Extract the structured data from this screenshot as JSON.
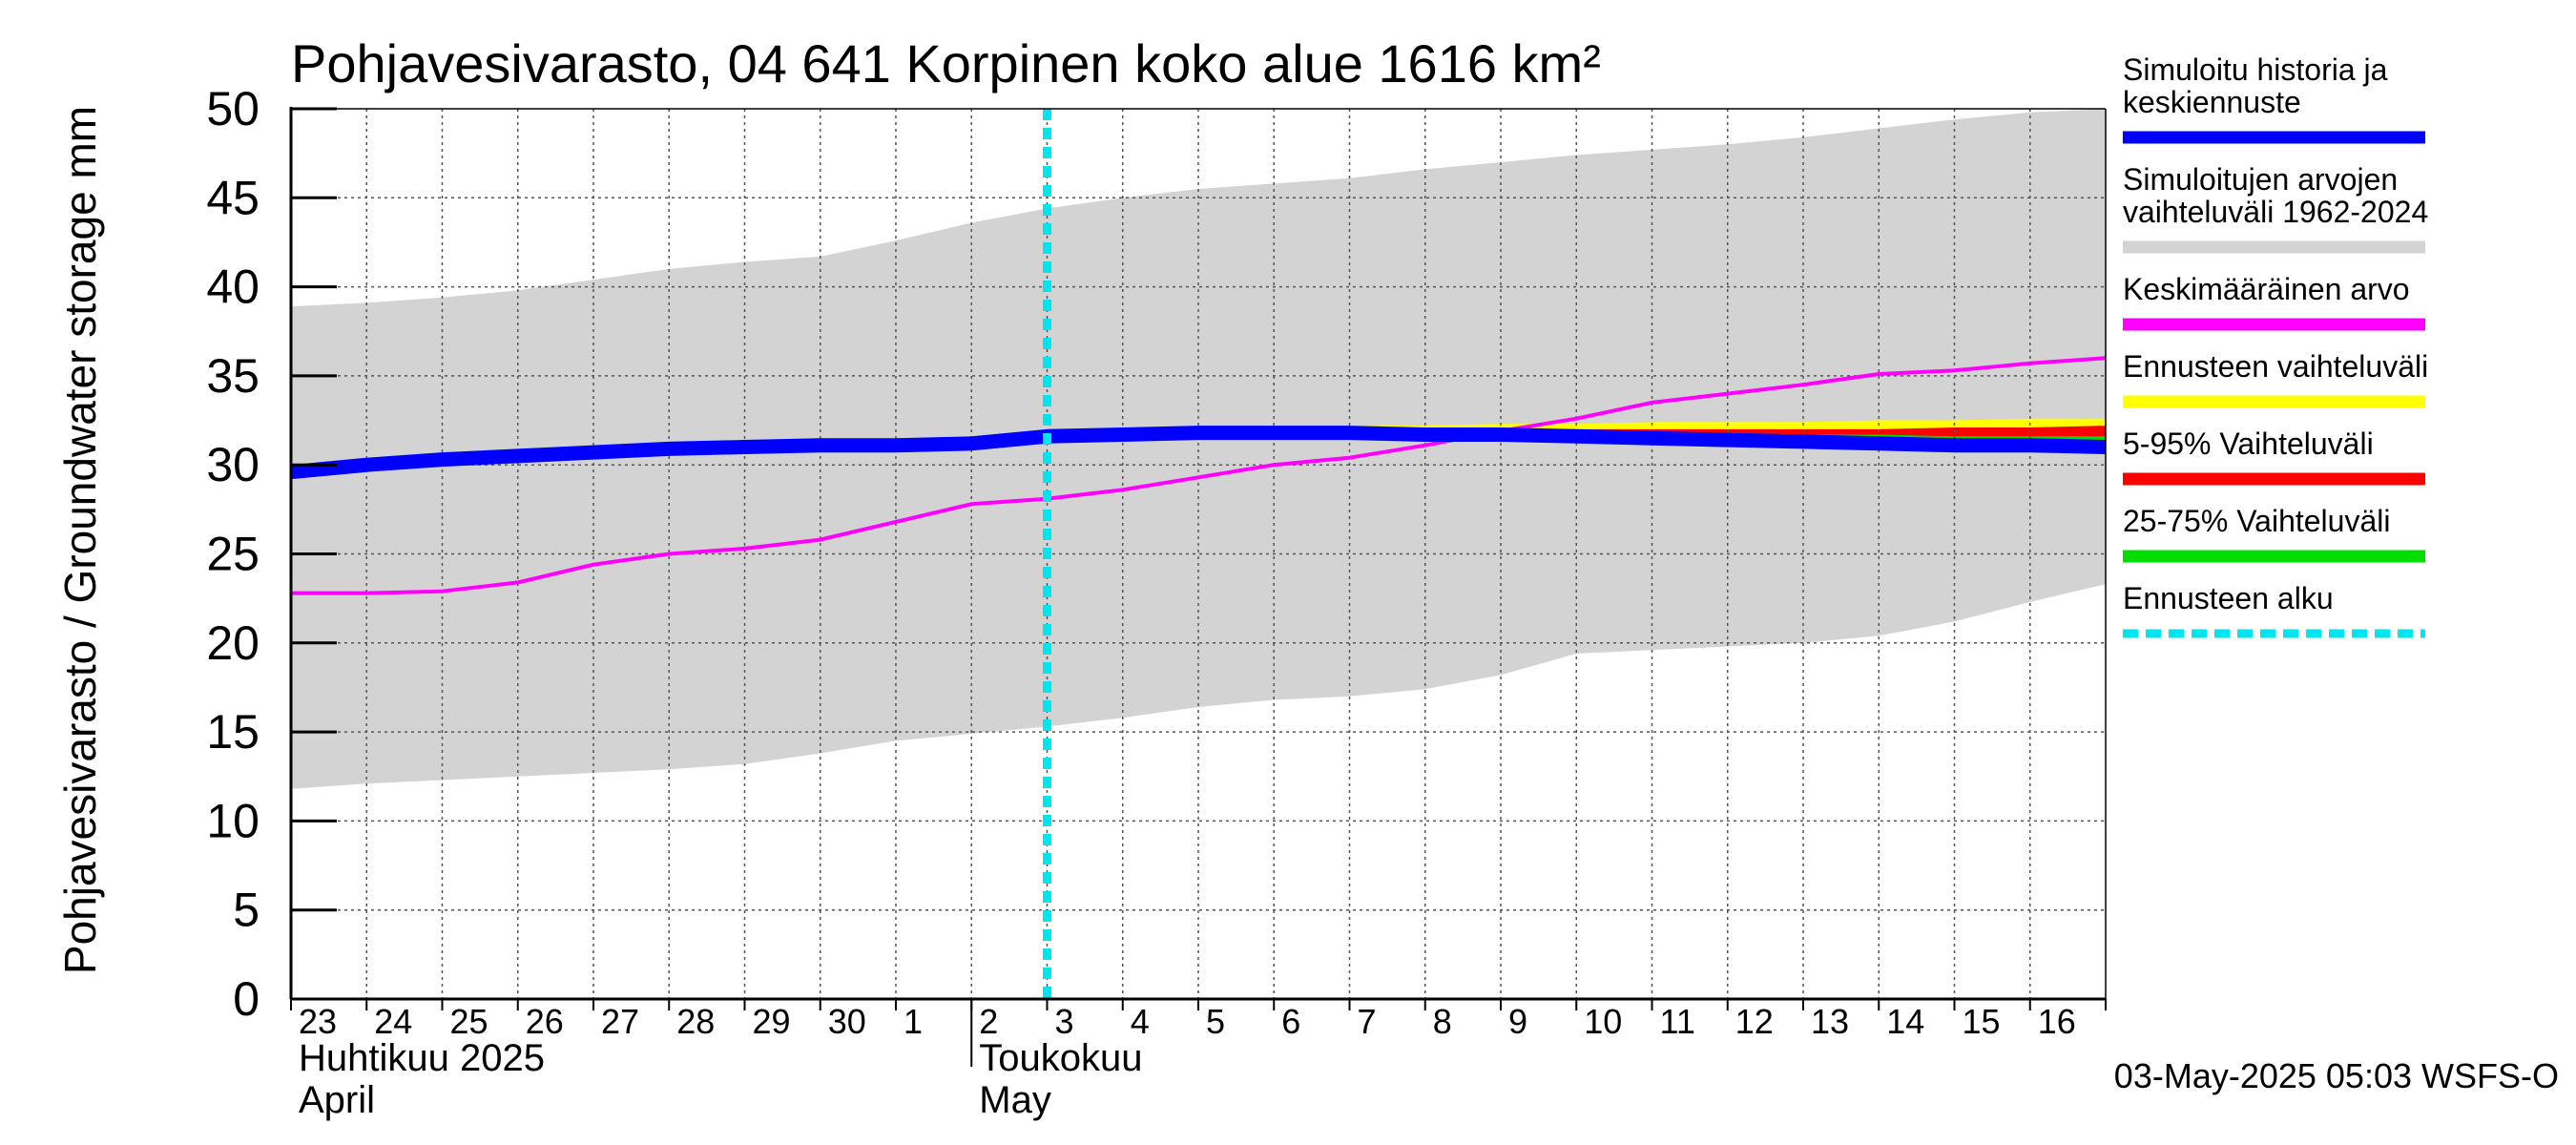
{
  "chart_data": {
    "type": "area",
    "title": "Pohjavesivarasto, 04 641 Korpinen koko alue 1616 km²",
    "ylabel": "Pohjavesivarasto / Groundwater storage   mm",
    "ylim": [
      0,
      50
    ],
    "yticks": [
      0,
      5,
      10,
      15,
      20,
      25,
      30,
      35,
      40,
      45,
      50
    ],
    "grid": true,
    "x_start": "2025-04-23",
    "x_end": "2025-05-16",
    "x_tick_labels": [
      "23",
      "24",
      "25",
      "26",
      "27",
      "28",
      "29",
      "30",
      "1",
      "2",
      "3",
      "4",
      "5",
      "6",
      "7",
      "8",
      "9",
      "10",
      "11",
      "12",
      "13",
      "14",
      "15",
      "16"
    ],
    "month_labels": [
      {
        "fi": "Huhtikuu  2025",
        "en": "April",
        "start": "2025-04-23"
      },
      {
        "fi": "Toukokuu",
        "en": "May",
        "start": "2025-05-02"
      }
    ],
    "forecast_start": "2025-05-03",
    "series": [
      {
        "name": "Simuloitujen arvojen vaihteluväli 1962-2024",
        "kind": "band",
        "color": "#d3d3d3",
        "x": [
          "2025-04-23",
          "2025-04-24",
          "2025-04-25",
          "2025-04-26",
          "2025-04-27",
          "2025-04-28",
          "2025-04-29",
          "2025-04-30",
          "2025-05-01",
          "2025-05-02",
          "2025-05-03",
          "2025-05-04",
          "2025-05-05",
          "2025-05-06",
          "2025-05-07",
          "2025-05-08",
          "2025-05-09",
          "2025-05-10",
          "2025-05-11",
          "2025-05-12",
          "2025-05-13",
          "2025-05-14",
          "2025-05-15",
          "2025-05-16",
          "2025-05-17"
        ],
        "lower": [
          11.8,
          12.1,
          12.3,
          12.5,
          12.7,
          12.9,
          13.2,
          13.8,
          14.5,
          14.9,
          15.3,
          15.8,
          16.4,
          16.8,
          17.0,
          17.4,
          18.2,
          19.4,
          19.6,
          19.8,
          20.0,
          20.4,
          21.2,
          22.3,
          23.3
        ],
        "upper": [
          38.9,
          39.1,
          39.4,
          39.8,
          40.4,
          41.0,
          41.4,
          41.7,
          42.6,
          43.6,
          44.4,
          45.0,
          45.5,
          45.8,
          46.1,
          46.6,
          47.0,
          47.4,
          47.7,
          48.0,
          48.4,
          48.9,
          49.4,
          49.8,
          50.0
        ]
      },
      {
        "name": "Ennusteen vaihteluväli",
        "kind": "band",
        "color": "#ffff00",
        "x": [
          "2025-05-03",
          "2025-05-04",
          "2025-05-05",
          "2025-05-06",
          "2025-05-07",
          "2025-05-08",
          "2025-05-09",
          "2025-05-10",
          "2025-05-11",
          "2025-05-12",
          "2025-05-13",
          "2025-05-14",
          "2025-05-15",
          "2025-05-16",
          "2025-05-17"
        ],
        "lower": [
          31.5,
          31.6,
          31.7,
          31.6,
          31.6,
          31.5,
          31.4,
          31.3,
          31.2,
          31.1,
          31.0,
          30.9,
          30.8,
          30.7,
          30.6
        ],
        "upper": [
          31.7,
          31.9,
          32.0,
          32.1,
          32.2,
          32.2,
          32.3,
          32.3,
          32.4,
          32.4,
          32.4,
          32.5,
          32.5,
          32.6,
          32.6
        ]
      },
      {
        "name": "5-95% Vaihteluväli",
        "kind": "band",
        "color": "#ff0000",
        "x": [
          "2025-05-03",
          "2025-05-04",
          "2025-05-05",
          "2025-05-06",
          "2025-05-07",
          "2025-05-08",
          "2025-05-09",
          "2025-05-10",
          "2025-05-11",
          "2025-05-12",
          "2025-05-13",
          "2025-05-14",
          "2025-05-15",
          "2025-05-16",
          "2025-05-17"
        ],
        "lower": [
          31.5,
          31.6,
          31.7,
          31.6,
          31.6,
          31.5,
          31.5,
          31.4,
          31.3,
          31.2,
          31.1,
          31.0,
          30.9,
          30.8,
          30.7
        ],
        "upper": [
          31.7,
          31.8,
          31.9,
          32.0,
          32.0,
          32.0,
          32.0,
          32.0,
          32.0,
          32.0,
          32.0,
          32.0,
          32.1,
          32.1,
          32.2
        ]
      },
      {
        "name": "25-75% Vaihteluväli",
        "kind": "band",
        "color": "#00dd00",
        "x": [
          "2025-05-03",
          "2025-05-04",
          "2025-05-05",
          "2025-05-06",
          "2025-05-07",
          "2025-05-08",
          "2025-05-09",
          "2025-05-10",
          "2025-05-11",
          "2025-05-12",
          "2025-05-13",
          "2025-05-14",
          "2025-05-15",
          "2025-05-16",
          "2025-05-17"
        ],
        "lower": [
          31.6,
          31.7,
          31.8,
          31.8,
          31.8,
          31.7,
          31.6,
          31.5,
          31.4,
          31.4,
          31.3,
          31.2,
          31.1,
          31.0,
          30.9
        ],
        "upper": [
          31.6,
          31.8,
          31.9,
          31.9,
          31.9,
          31.9,
          31.9,
          31.8,
          31.8,
          31.8,
          31.7,
          31.7,
          31.6,
          31.6,
          31.6
        ]
      },
      {
        "name": "Keskimääräinen arvo",
        "kind": "line",
        "color": "#ff00ff",
        "x": [
          "2025-04-23",
          "2025-04-24",
          "2025-04-25",
          "2025-04-26",
          "2025-04-27",
          "2025-04-28",
          "2025-04-29",
          "2025-04-30",
          "2025-05-01",
          "2025-05-02",
          "2025-05-03",
          "2025-05-04",
          "2025-05-05",
          "2025-05-06",
          "2025-05-07",
          "2025-05-08",
          "2025-05-09",
          "2025-05-10",
          "2025-05-11",
          "2025-05-12",
          "2025-05-13",
          "2025-05-14",
          "2025-05-15",
          "2025-05-16",
          "2025-05-17"
        ],
        "values": [
          22.8,
          22.8,
          22.9,
          23.4,
          24.4,
          25.0,
          25.3,
          25.8,
          26.8,
          27.8,
          28.1,
          28.6,
          29.3,
          30.0,
          30.4,
          31.1,
          31.9,
          32.6,
          33.5,
          34.0,
          34.5,
          35.1,
          35.3,
          35.7,
          36.0
        ]
      },
      {
        "name": "Simuloitu historia ja keskiennuste",
        "kind": "line",
        "color": "#0000ff",
        "x": [
          "2025-04-23",
          "2025-04-24",
          "2025-04-25",
          "2025-04-26",
          "2025-04-27",
          "2025-04-28",
          "2025-04-29",
          "2025-04-30",
          "2025-05-01",
          "2025-05-02",
          "2025-05-03",
          "2025-05-04",
          "2025-05-05",
          "2025-05-06",
          "2025-05-07",
          "2025-05-08",
          "2025-05-09",
          "2025-05-10",
          "2025-05-11",
          "2025-05-12",
          "2025-05-13",
          "2025-05-14",
          "2025-05-15",
          "2025-05-16",
          "2025-05-17"
        ],
        "values": [
          29.6,
          30.0,
          30.3,
          30.5,
          30.7,
          30.9,
          31.0,
          31.1,
          31.1,
          31.2,
          31.6,
          31.7,
          31.8,
          31.8,
          31.8,
          31.7,
          31.7,
          31.6,
          31.5,
          31.4,
          31.3,
          31.2,
          31.1,
          31.1,
          31.0
        ]
      }
    ],
    "legend": {
      "placement": "right",
      "items": [
        {
          "label_lines": [
            "Simuloitu historia ja",
            "keskiennuste"
          ],
          "color": "#0000ff",
          "style": "solid"
        },
        {
          "label_lines": [
            "Simuloitujen arvojen",
            "vaihteluväli 1962-2024"
          ],
          "color": "#d3d3d3",
          "style": "solid"
        },
        {
          "label_lines": [
            "Keskimääräinen arvo"
          ],
          "color": "#ff00ff",
          "style": "solid"
        },
        {
          "label_lines": [
            "Ennusteen vaihteluväli"
          ],
          "color": "#ffff00",
          "style": "solid"
        },
        {
          "label_lines": [
            "5-95% Vaihteluväli"
          ],
          "color": "#ff0000",
          "style": "solid"
        },
        {
          "label_lines": [
            "25-75% Vaihteluväli"
          ],
          "color": "#00dd00",
          "style": "solid"
        },
        {
          "label_lines": [
            "Ennusteen alku"
          ],
          "color": "#00e5ee",
          "style": "dashed"
        }
      ]
    },
    "timestamp": "03-May-2025 05:03 WSFS-O"
  }
}
